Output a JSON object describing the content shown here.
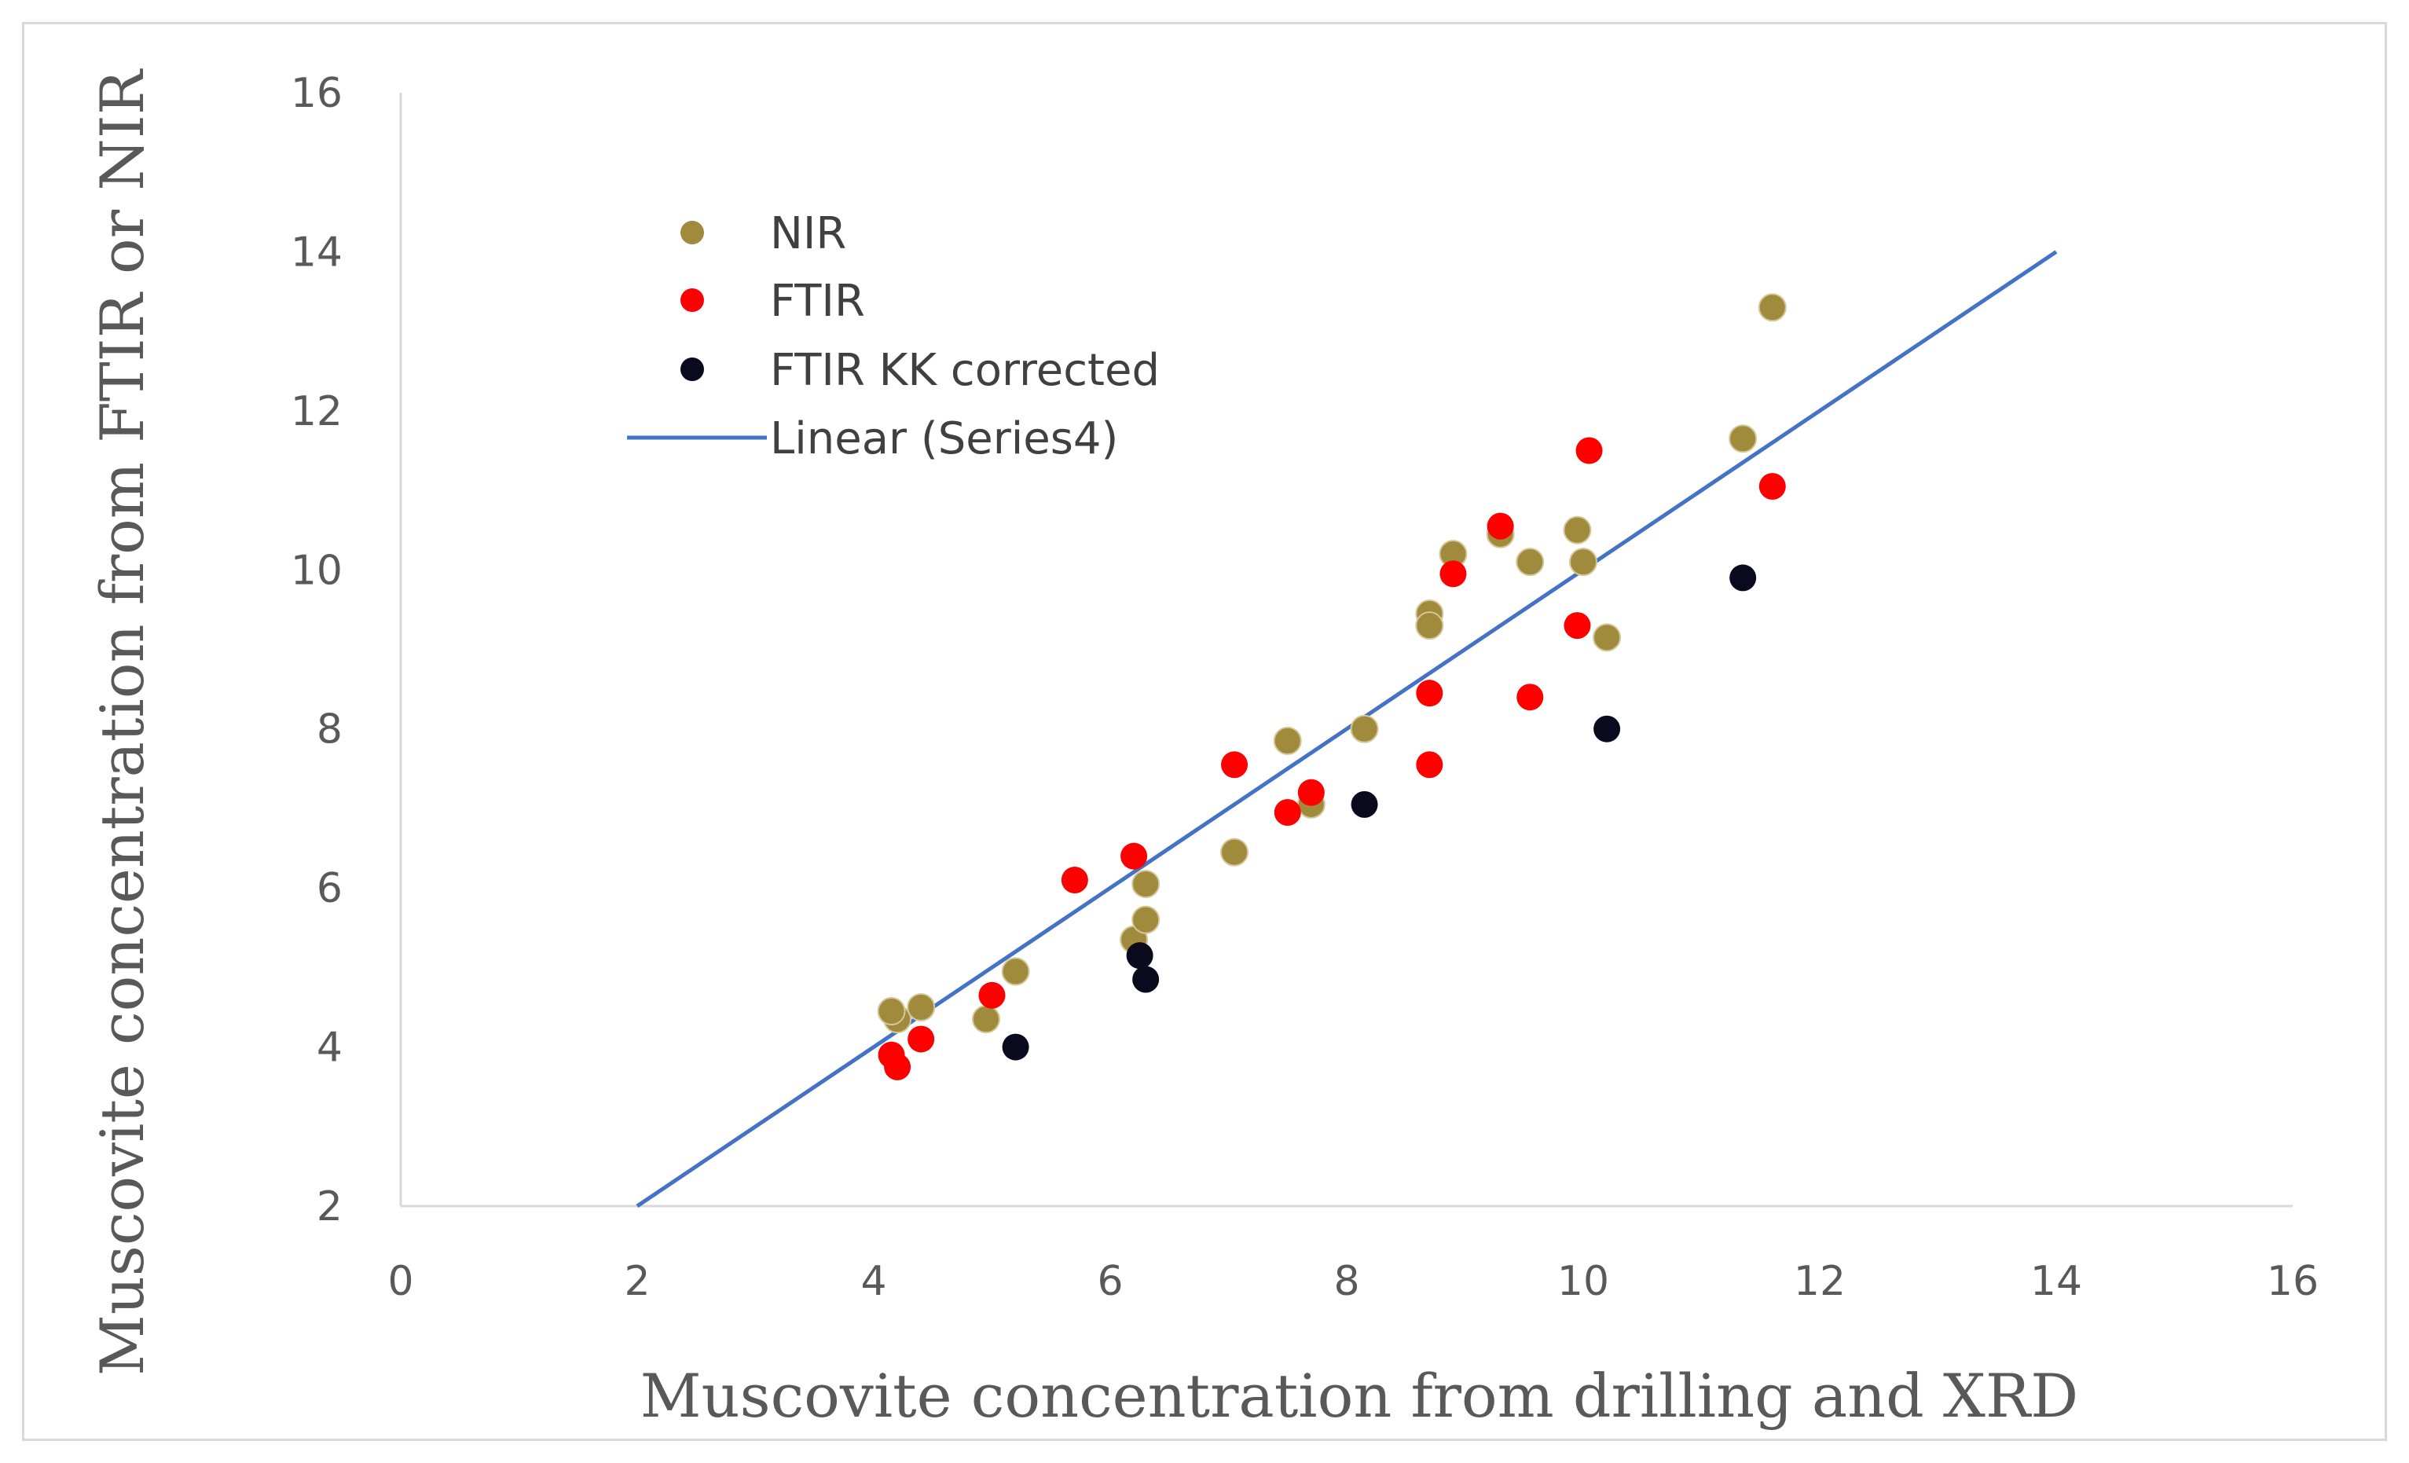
{
  "chart_data": {
    "type": "scatter",
    "title": "",
    "xlabel": "Muscovite concentration from drilling and XRD",
    "ylabel": "Muscovite concentration from FTIR or NIR",
    "xlim": [
      0,
      16
    ],
    "ylim": [
      2,
      16
    ],
    "xticks": [
      "0",
      "2",
      "4",
      "6",
      "8",
      "10",
      "12",
      "14",
      "16"
    ],
    "yticks": [
      "2",
      "4",
      "6",
      "8",
      "10",
      "12",
      "14",
      "16"
    ],
    "grid": false,
    "legend_position": "upper-left",
    "series": [
      {
        "name": "NIR",
        "color": "#a08a3c",
        "points": [
          [
            4.2,
            4.35
          ],
          [
            4.15,
            4.45
          ],
          [
            4.4,
            4.5
          ],
          [
            4.95,
            4.35
          ],
          [
            5.2,
            4.95
          ],
          [
            6.2,
            5.35
          ],
          [
            6.3,
            5.6
          ],
          [
            6.3,
            6.05
          ],
          [
            7.05,
            6.45
          ],
          [
            7.5,
            7.85
          ],
          [
            7.7,
            7.05
          ],
          [
            8.15,
            8.0
          ],
          [
            8.7,
            9.45
          ],
          [
            8.7,
            9.3
          ],
          [
            8.9,
            10.2
          ],
          [
            9.3,
            10.45
          ],
          [
            9.55,
            10.1
          ],
          [
            9.95,
            10.5
          ],
          [
            10.0,
            10.1
          ],
          [
            10.2,
            9.15
          ],
          [
            11.35,
            11.65
          ],
          [
            11.6,
            13.3
          ]
        ]
      },
      {
        "name": "FTIR",
        "color": "#ff0000",
        "points": [
          [
            4.15,
            3.9
          ],
          [
            4.2,
            3.75
          ],
          [
            4.4,
            4.1
          ],
          [
            5.0,
            4.65
          ],
          [
            5.7,
            6.1
          ],
          [
            6.2,
            6.4
          ],
          [
            7.05,
            7.55
          ],
          [
            7.5,
            6.95
          ],
          [
            7.7,
            7.2
          ],
          [
            8.7,
            7.55
          ],
          [
            8.7,
            8.45
          ],
          [
            8.9,
            9.95
          ],
          [
            9.3,
            10.55
          ],
          [
            9.55,
            8.4
          ],
          [
            9.95,
            9.3
          ],
          [
            10.05,
            11.5
          ],
          [
            11.6,
            11.05
          ]
        ]
      },
      {
        "name": "FTIR KK corrected",
        "color": "#0a0a1e",
        "points": [
          [
            5.2,
            4.0
          ],
          [
            6.25,
            5.15
          ],
          [
            6.3,
            4.85
          ],
          [
            8.15,
            7.05
          ],
          [
            10.2,
            8.0
          ],
          [
            11.35,
            9.9
          ]
        ]
      }
    ],
    "trendline": {
      "name": "Linear (Series4)",
      "color": "#4472c4",
      "start": [
        2,
        2
      ],
      "end": [
        14,
        14
      ]
    }
  }
}
